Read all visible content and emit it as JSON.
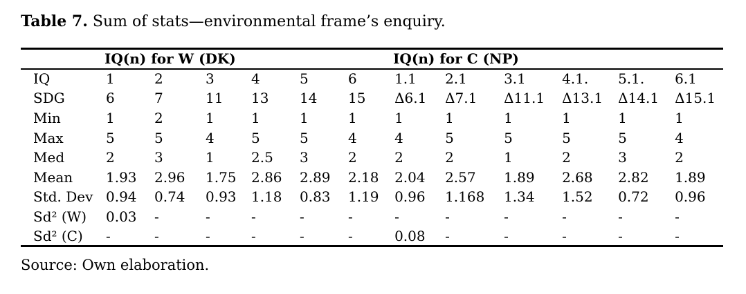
{
  "caption": {
    "bold": "Table 7.",
    "rest": " Sum of stats—environmental frame’s enquiry."
  },
  "table": {
    "group_headers": [
      {
        "label": "IQ(n) for W (DK)",
        "span": 6
      },
      {
        "label": "IQ(n) for C (NP)",
        "span": 6
      }
    ],
    "rows": [
      {
        "label": "IQ",
        "values": [
          "1",
          "2",
          "3",
          "4",
          "5",
          "6",
          "1.1",
          "2.1",
          "3.1",
          "4.1.",
          "5.1.",
          "6.1"
        ]
      },
      {
        "label": "SDG",
        "values": [
          "6",
          "7",
          "11",
          "13",
          "14",
          "15",
          "Δ6.1",
          "Δ7.1",
          "Δ11.1",
          "Δ13.1",
          "Δ14.1",
          "Δ15.1"
        ]
      },
      {
        "label": "Min",
        "values": [
          "1",
          "2",
          "1",
          "1",
          "1",
          "1",
          "1",
          "1",
          "1",
          "1",
          "1",
          "1"
        ]
      },
      {
        "label": "Max",
        "values": [
          "5",
          "5",
          "4",
          "5",
          "5",
          "4",
          "4",
          "5",
          "5",
          "5",
          "5",
          "4"
        ]
      },
      {
        "label": "Med",
        "values": [
          "2",
          "3",
          "1",
          "2.5",
          "3",
          "2",
          "2",
          "2",
          "1",
          "2",
          "3",
          "2"
        ]
      },
      {
        "label": "Mean",
        "values": [
          "1.93",
          "2.96",
          "1.75",
          "2.86",
          "2.89",
          "2.18",
          "2.04",
          "2.57",
          "1.89",
          "2.68",
          "2.82",
          "1.89"
        ]
      },
      {
        "label": "Std. Dev",
        "values": [
          "0.94",
          "0.74",
          "0.93",
          "1.18",
          "0.83",
          "1.19",
          "0.96",
          "1.168",
          "1.34",
          "1.52",
          "0.72",
          "0.96"
        ]
      },
      {
        "label": "Sd² (W)",
        "values": [
          "0.03",
          "-",
          "-",
          "-",
          "-",
          "-",
          "-",
          "-",
          "-",
          "-",
          "-",
          "-"
        ]
      },
      {
        "label": "Sd² (C)",
        "values": [
          "-",
          "-",
          "-",
          "-",
          "-",
          "-",
          "0.08",
          "-",
          "-",
          "-",
          "-",
          "-"
        ]
      }
    ]
  },
  "source": "Source: Own elaboration."
}
